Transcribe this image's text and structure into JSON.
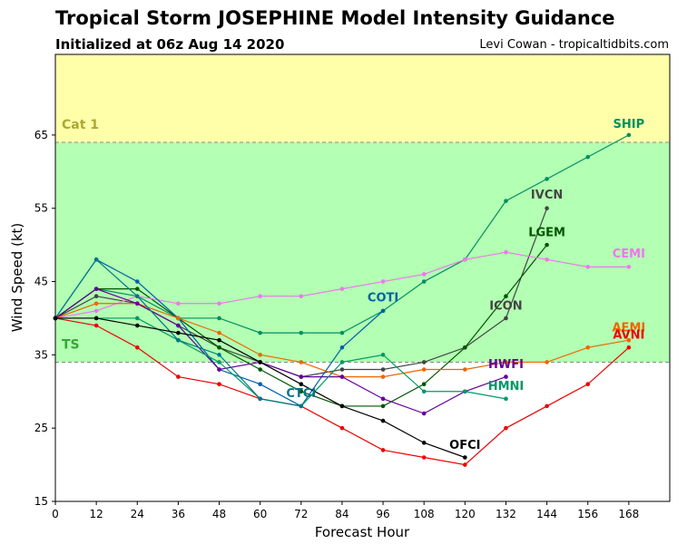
{
  "header": {
    "title": "Tropical Storm JOSEPHINE Model Intensity Guidance",
    "subtitle": "Initialized at 06z Aug 14 2020",
    "credit": "Levi Cowan - tropicaltidbits.com"
  },
  "chart_data": {
    "type": "line",
    "title": "Tropical Storm JOSEPHINE Model Intensity Guidance",
    "subtitle": "Initialized at 06z Aug 14 2020",
    "xlabel": "Forecast Hour",
    "ylabel": "Wind Speed (kt)",
    "xlim": [
      0,
      180
    ],
    "ylim": [
      15,
      76
    ],
    "xticks": [
      0,
      12,
      24,
      36,
      48,
      60,
      72,
      84,
      96,
      108,
      120,
      132,
      144,
      156,
      168
    ],
    "yticks": [
      15,
      25,
      35,
      45,
      55,
      65
    ],
    "grid": false,
    "legend": "none",
    "bands": [
      {
        "label": "TS",
        "from": 34,
        "to": 64,
        "color": "#b3ffb3",
        "label_color": "#33aa33"
      },
      {
        "label": "Cat 1",
        "from": 64,
        "to": 76,
        "color": "#ffffaa",
        "label_color": "#aaaa33"
      }
    ],
    "thresholds": [
      34,
      64
    ],
    "series": [
      {
        "name": "SHIP",
        "color": "#009060",
        "x": [
          0,
          12,
          24,
          36,
          48,
          60,
          72,
          84,
          96,
          108,
          120,
          132,
          144,
          156,
          168
        ],
        "y": [
          40,
          44,
          43,
          40,
          40,
          38,
          38,
          38,
          41,
          45,
          48,
          56,
          59,
          62,
          65
        ],
        "label_x": 168,
        "label_y": 66
      },
      {
        "name": "IVCN",
        "color": "#444444",
        "x": [
          0,
          12,
          24,
          36,
          48,
          60,
          72,
          84,
          96,
          108,
          120,
          132,
          144
        ],
        "y": [
          40,
          43,
          42,
          39,
          36,
          34,
          32,
          33,
          33,
          34,
          36,
          40,
          55
        ],
        "label_x": 144,
        "label_y": 56.3
      },
      {
        "name": "LGEM",
        "color": "#005500",
        "x": [
          0,
          12,
          24,
          36,
          48,
          60,
          72,
          84,
          96,
          108,
          120,
          132,
          144
        ],
        "y": [
          40,
          44,
          44,
          40,
          36,
          33,
          30,
          28,
          28,
          31,
          36,
          43,
          50
        ],
        "label_x": 144,
        "label_y": 51.2
      },
      {
        "name": "CEMI",
        "color": "#ee77ee",
        "x": [
          0,
          12,
          24,
          36,
          48,
          60,
          72,
          84,
          96,
          108,
          120,
          132,
          144,
          156,
          168
        ],
        "y": [
          40,
          41,
          43,
          42,
          42,
          43,
          43,
          44,
          45,
          46,
          48,
          49,
          48,
          47,
          47
        ],
        "label_x": 168,
        "label_y": 48.3
      },
      {
        "name": "COTI",
        "color": "#0060aa",
        "x": [
          0,
          12,
          24,
          36,
          48,
          60,
          72,
          84,
          96
        ],
        "y": [
          40,
          48,
          45,
          40,
          33,
          31,
          28,
          36,
          41
        ],
        "label_x": 96,
        "label_y": 42.3
      },
      {
        "name": "ICON",
        "color": "#444444",
        "x": [],
        "y": [],
        "label_x": 132,
        "label_y": 41.2
      },
      {
        "name": "AEMI",
        "color": "#ee6600",
        "x": [
          0,
          12,
          24,
          36,
          48,
          60,
          72,
          84,
          96,
          108,
          120,
          132,
          144,
          156,
          168
        ],
        "y": [
          40,
          42,
          42,
          40,
          38,
          35,
          34,
          32,
          32,
          33,
          33,
          34,
          34,
          36,
          37
        ],
        "label_x": 168,
        "label_y": 38.2
      },
      {
        "name": "AVNI",
        "color": "#ee0000",
        "x": [
          0,
          12,
          24,
          36,
          48,
          60,
          72,
          84,
          96,
          108,
          120,
          132,
          144,
          156,
          168
        ],
        "y": [
          40,
          39,
          36,
          32,
          31,
          29,
          28,
          25,
          22,
          21,
          20,
          25,
          28,
          31,
          36
        ],
        "label_x": 168,
        "label_y": 37.2
      },
      {
        "name": "HWFI",
        "color": "#660099",
        "x": [
          0,
          12,
          24,
          36,
          48,
          60,
          72,
          84,
          96,
          108,
          120,
          132
        ],
        "y": [
          40,
          44,
          42,
          39,
          33,
          34,
          32,
          32,
          29,
          27,
          30,
          32
        ],
        "label_x": 132,
        "label_y": 33.2
      },
      {
        "name": "HMNI",
        "color": "#009966",
        "x": [
          0,
          12,
          24,
          36,
          48,
          60,
          72,
          84,
          96,
          108,
          120,
          132
        ],
        "y": [
          40,
          40,
          40,
          37,
          34,
          29,
          28,
          34,
          35,
          30,
          30,
          29
        ],
        "label_x": 132,
        "label_y": 30.2
      },
      {
        "name": "CTCI",
        "color": "#007788",
        "x": [
          0,
          12,
          24,
          36,
          48,
          60,
          72
        ],
        "y": [
          40,
          48,
          43,
          37,
          35,
          29,
          28
        ],
        "label_x": 72,
        "label_y": 29.2
      },
      {
        "name": "OFCI",
        "color": "#000000",
        "x": [
          0,
          12,
          24,
          36,
          48,
          60,
          72,
          84,
          96,
          108,
          120
        ],
        "y": [
          40,
          40,
          39,
          38,
          37,
          34,
          31,
          28,
          26,
          23,
          21
        ],
        "label_x": 120,
        "label_y": 22.2
      }
    ]
  }
}
